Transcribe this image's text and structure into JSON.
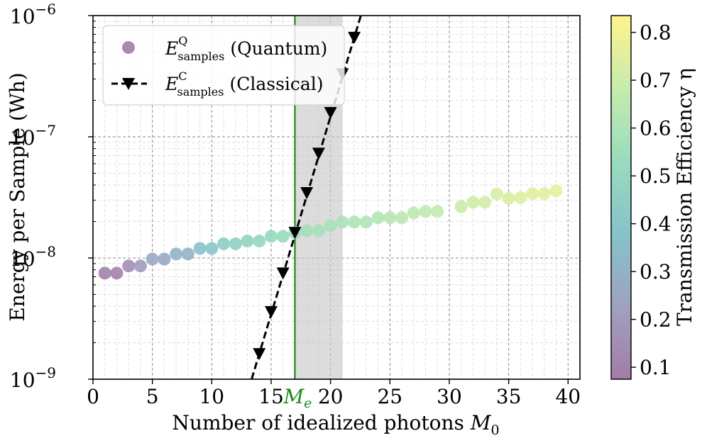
{
  "chart_data": {
    "type": "scatter",
    "title": "",
    "xlabel": "Number of idealized photons M₀",
    "ylabel": "Energy per Sample (Wh)",
    "xlim": [
      0,
      41
    ],
    "ylim": [
      1e-09,
      1e-06
    ],
    "yscale": "log",
    "grid": true,
    "x_ticks": [
      "0",
      "5",
      "10",
      "15",
      "20",
      "25",
      "30",
      "35",
      "40"
    ],
    "y_ticks": [
      {
        "base": "10",
        "exp": "−9"
      },
      {
        "base": "10",
        "exp": "−8"
      },
      {
        "base": "10",
        "exp": "−7"
      },
      {
        "base": "10",
        "exp": "−6"
      }
    ],
    "vline": {
      "x": 17,
      "label_main": "M",
      "label_sub": "e",
      "color": "#1a8a1a"
    },
    "shaded_region": {
      "x0": 17,
      "x1": 21
    },
    "legend": {
      "position": "top-left",
      "quantum": {
        "symbol": "E",
        "sup": "Q",
        "sub": "samples",
        "text": "(Quantum)"
      },
      "classical": {
        "symbol": "E",
        "sup": "C",
        "sub": "samples",
        "text": "(Classical)"
      }
    },
    "series": [
      {
        "name": "E_samples^Q (Quantum)",
        "kind": "scatter",
        "x": [
          1,
          2,
          3,
          4,
          5,
          6,
          7,
          8,
          9,
          10,
          11,
          12,
          13,
          14,
          15,
          16,
          17,
          18,
          19,
          20,
          21,
          22,
          23,
          24,
          25,
          26,
          27,
          28,
          29,
          31,
          32,
          33,
          34,
          35,
          36,
          37,
          38,
          39
        ],
        "y": [
          7.5e-09,
          7.5e-09,
          8.6e-09,
          8.6e-09,
          9.8e-09,
          9.8e-09,
          1.08e-08,
          1.08e-08,
          1.2e-08,
          1.2e-08,
          1.31e-08,
          1.31e-08,
          1.38e-08,
          1.38e-08,
          1.51e-08,
          1.51e-08,
          1.62e-08,
          1.68e-08,
          1.68e-08,
          1.85e-08,
          1.98e-08,
          1.98e-08,
          1.98e-08,
          2.15e-08,
          2.15e-08,
          2.15e-08,
          2.35e-08,
          2.42e-08,
          2.42e-08,
          2.65e-08,
          2.88e-08,
          2.88e-08,
          3.38e-08,
          3.1e-08,
          3.15e-08,
          3.4e-08,
          3.4e-08,
          3.58e-08
        ],
        "eta": [
          0.1,
          0.1,
          0.15,
          0.2,
          0.26,
          0.26,
          0.31,
          0.31,
          0.36,
          0.4,
          0.44,
          0.46,
          0.48,
          0.5,
          0.51,
          0.52,
          0.54,
          0.56,
          0.57,
          0.58,
          0.59,
          0.6,
          0.61,
          0.62,
          0.63,
          0.64,
          0.65,
          0.66,
          0.67,
          0.69,
          0.7,
          0.71,
          0.72,
          0.73,
          0.74,
          0.75,
          0.76,
          0.77
        ]
      },
      {
        "name": "E_samples^C (Classical)",
        "kind": "line-marker",
        "style": "dashed",
        "x": [
          14,
          15,
          16,
          17,
          18,
          19,
          20,
          21,
          22
        ],
        "y": [
          1.62e-09,
          3.6e-09,
          7.5e-09,
          1.62e-08,
          3.45e-08,
          7.3e-08,
          1.58e-07,
          3.3e-07,
          6.6e-07
        ]
      }
    ],
    "colorbar": {
      "label": "Transmission Efficiency η",
      "range": [
        0.075,
        0.835
      ],
      "colormap": [
        "#a47ca6",
        "#9fa1c2",
        "#86c3c9",
        "#98dcbd",
        "#c7ecac",
        "#fff38f"
      ],
      "ticks": [
        "0.1",
        "0.2",
        "0.3",
        "0.4",
        "0.5",
        "0.6",
        "0.7",
        "0.8"
      ]
    }
  }
}
